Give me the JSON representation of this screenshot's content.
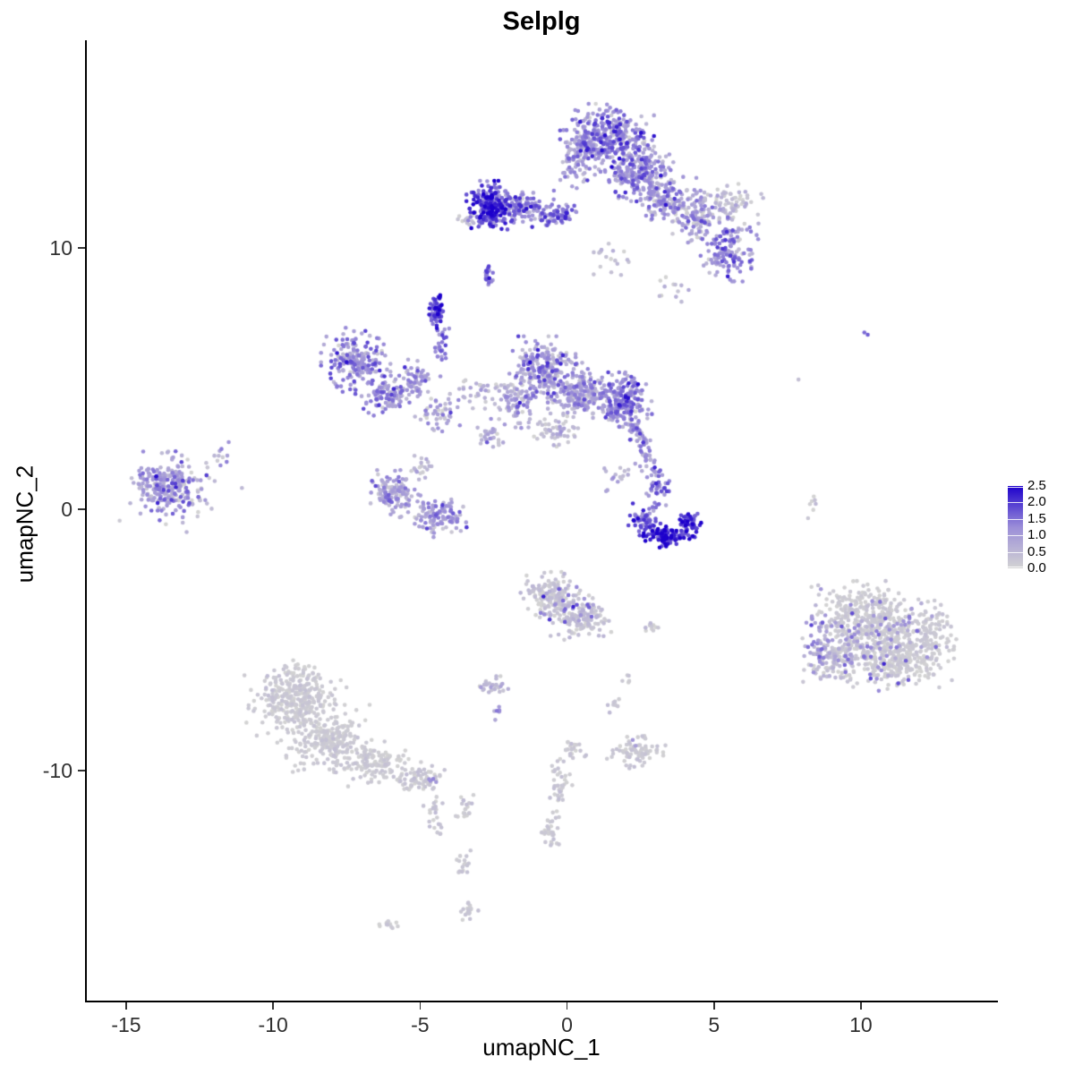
{
  "chart_data": {
    "type": "scatter",
    "title": "Selplg",
    "xlabel": "umapNC_1",
    "ylabel": "umapNC_2",
    "xlim": [
      -16.4,
      14.6
    ],
    "ylim": [
      -18.8,
      17.95
    ],
    "x_ticks": [
      -15,
      -10,
      -5,
      0,
      5,
      10
    ],
    "y_ticks": [
      -10,
      0,
      10
    ],
    "grid": false,
    "point_radius": 2.3,
    "seed": 42,
    "color_scale": {
      "domain": [
        0,
        2.5
      ],
      "stops": [
        [
          0,
          "#D3D3D3"
        ],
        [
          0.5,
          "#9B8ED8"
        ],
        [
          1,
          "#1D00CC"
        ]
      ]
    },
    "legend": {
      "position": "right",
      "labels": [
        "2.5",
        "2.0",
        "1.5",
        "1.0",
        "0.5",
        "0.0"
      ],
      "values": [
        2.5,
        2.0,
        1.5,
        1.0,
        0.5,
        0.0
      ]
    },
    "cluster_fields": [
      "x",
      "y",
      "rx",
      "ry",
      "n",
      "expr_mean",
      "expr_sd"
    ],
    "clusters": [
      [
        1.3,
        14.2,
        1.15,
        0.95,
        360,
        1.15,
        0.55
      ],
      [
        2.4,
        12.9,
        0.95,
        0.75,
        220,
        1.0,
        0.5
      ],
      [
        3.3,
        11.9,
        0.85,
        0.7,
        150,
        0.85,
        0.5
      ],
      [
        4.3,
        11.1,
        0.8,
        0.65,
        120,
        0.8,
        0.5
      ],
      [
        5.4,
        9.9,
        0.75,
        0.85,
        140,
        1.2,
        0.5
      ],
      [
        5.5,
        11.7,
        0.8,
        0.55,
        70,
        0.35,
        0.3
      ],
      [
        0.3,
        13.4,
        0.5,
        0.8,
        80,
        0.9,
        0.5
      ],
      [
        1.2,
        9.7,
        0.9,
        0.6,
        18,
        0.4,
        0.3
      ],
      [
        3.5,
        8.5,
        0.5,
        0.4,
        12,
        0.3,
        0.25
      ],
      [
        -2.65,
        11.6,
        0.6,
        0.7,
        240,
        1.8,
        0.5
      ],
      [
        -1.55,
        11.5,
        0.75,
        0.5,
        110,
        1.1,
        0.5
      ],
      [
        -0.4,
        11.3,
        0.6,
        0.4,
        70,
        1.3,
        0.5
      ],
      [
        -3.5,
        11.1,
        0.3,
        0.25,
        12,
        0.25,
        0.2
      ],
      [
        -4.5,
        7.6,
        0.18,
        0.5,
        65,
        1.9,
        0.4
      ],
      [
        -2.75,
        8.9,
        0.12,
        0.35,
        22,
        1.4,
        0.4
      ],
      [
        -4.35,
        6.2,
        0.2,
        0.8,
        25,
        1.3,
        0.45
      ],
      [
        -7.25,
        5.7,
        0.85,
        0.95,
        190,
        1.15,
        0.5
      ],
      [
        -6.2,
        4.3,
        0.7,
        0.6,
        100,
        1.0,
        0.45
      ],
      [
        -5.2,
        4.9,
        0.5,
        0.6,
        60,
        0.9,
        0.45
      ],
      [
        -4.4,
        3.6,
        0.6,
        0.5,
        45,
        0.8,
        0.45
      ],
      [
        -3.1,
        4.4,
        0.8,
        0.6,
        35,
        0.55,
        0.4
      ],
      [
        -2.6,
        2.9,
        0.5,
        0.6,
        28,
        0.5,
        0.4
      ],
      [
        -0.8,
        5.3,
        0.95,
        0.95,
        260,
        0.9,
        0.55
      ],
      [
        0.4,
        4.4,
        0.8,
        0.7,
        180,
        0.8,
        0.5
      ],
      [
        1.8,
        4.2,
        0.75,
        0.75,
        210,
        1.2,
        0.5
      ],
      [
        -1.8,
        4.1,
        0.5,
        0.8,
        80,
        0.7,
        0.45
      ],
      [
        -0.4,
        3.0,
        0.7,
        0.5,
        55,
        0.35,
        0.3
      ],
      [
        2.35,
        3.1,
        0.3,
        0.5,
        40,
        1.0,
        0.5
      ],
      [
        1.6,
        1.3,
        0.5,
        0.5,
        15,
        0.6,
        0.4
      ],
      [
        -13.7,
        0.9,
        1.0,
        0.95,
        230,
        0.95,
        0.5
      ],
      [
        -13.2,
        0.7,
        1.5,
        1.3,
        40,
        0.35,
        0.3
      ],
      [
        -11.8,
        2.2,
        0.35,
        0.5,
        10,
        0.8,
        0.4
      ],
      [
        -5.9,
        0.6,
        0.75,
        0.65,
        130,
        0.85,
        0.45
      ],
      [
        -4.4,
        -0.3,
        0.7,
        0.55,
        110,
        0.9,
        0.45
      ],
      [
        -5.0,
        1.6,
        0.4,
        0.4,
        18,
        0.5,
        0.35
      ],
      [
        2.6,
        -0.4,
        0.45,
        0.45,
        60,
        1.5,
        0.45
      ],
      [
        3.3,
        -1.0,
        0.55,
        0.35,
        90,
        2.2,
        0.35
      ],
      [
        4.1,
        -0.6,
        0.4,
        0.45,
        60,
        1.9,
        0.45
      ],
      [
        3.0,
        0.9,
        0.3,
        0.7,
        45,
        1.25,
        0.45
      ],
      [
        2.6,
        2.0,
        0.35,
        0.5,
        30,
        1.0,
        0.45
      ],
      [
        -0.6,
        -3.3,
        0.75,
        0.65,
        150,
        0.22,
        0.18
      ],
      [
        0.4,
        -4.2,
        0.75,
        0.65,
        130,
        0.25,
        0.2
      ],
      [
        0.0,
        -3.7,
        0.8,
        0.7,
        25,
        1.3,
        0.4
      ],
      [
        2.75,
        -4.5,
        0.3,
        0.2,
        10,
        0.2,
        0.15
      ],
      [
        -2.6,
        -6.8,
        0.4,
        0.3,
        30,
        0.4,
        0.35
      ],
      [
        -2.4,
        -7.8,
        0.15,
        0.25,
        6,
        0.9,
        0.4
      ],
      [
        -9.3,
        -7.2,
        1.25,
        1.05,
        320,
        0.13,
        0.1
      ],
      [
        -8.2,
        -8.8,
        1.25,
        0.95,
        260,
        0.13,
        0.1
      ],
      [
        -6.6,
        -9.7,
        1.0,
        0.65,
        130,
        0.13,
        0.1
      ],
      [
        -5.2,
        -10.3,
        0.7,
        0.45,
        60,
        0.15,
        0.12
      ],
      [
        -4.6,
        -11.6,
        0.25,
        0.85,
        28,
        0.18,
        0.14
      ],
      [
        -4.7,
        -10.3,
        0.15,
        0.2,
        4,
        1.2,
        0.3
      ],
      [
        10.2,
        -4.2,
        1.4,
        1.05,
        360,
        0.12,
        0.1
      ],
      [
        11.3,
        -5.7,
        1.3,
        0.95,
        300,
        0.12,
        0.1
      ],
      [
        9.2,
        -5.6,
        0.9,
        0.9,
        150,
        0.25,
        0.2
      ],
      [
        10.5,
        -5.0,
        1.7,
        1.4,
        90,
        1.1,
        0.4
      ],
      [
        8.6,
        -5.2,
        0.45,
        1.1,
        55,
        0.9,
        0.4
      ],
      [
        12.4,
        -4.6,
        0.6,
        0.8,
        60,
        0.12,
        0.1
      ],
      [
        10.0,
        6.8,
        0.15,
        0.12,
        2,
        1.6,
        0.2
      ],
      [
        7.8,
        4.9,
        0.1,
        0.1,
        1,
        0.4,
        0.1
      ],
      [
        8.3,
        0.2,
        0.12,
        0.55,
        7,
        0.3,
        0.25
      ],
      [
        2.3,
        -9.3,
        0.75,
        0.45,
        80,
        0.15,
        0.12
      ],
      [
        2.4,
        -9.1,
        0.3,
        0.2,
        2,
        1.1,
        0.2
      ],
      [
        0.1,
        -9.2,
        0.35,
        0.35,
        22,
        0.15,
        0.12
      ],
      [
        -0.3,
        -10.6,
        0.3,
        0.85,
        40,
        0.15,
        0.12
      ],
      [
        -0.6,
        -12.4,
        0.3,
        0.6,
        28,
        0.15,
        0.12
      ],
      [
        -3.5,
        -11.4,
        0.25,
        0.55,
        20,
        0.15,
        0.12
      ],
      [
        -3.6,
        -13.6,
        0.2,
        0.5,
        16,
        0.15,
        0.12
      ],
      [
        -3.4,
        -15.3,
        0.3,
        0.4,
        22,
        0.15,
        0.12
      ],
      [
        -6.2,
        -15.9,
        0.4,
        0.18,
        12,
        0.15,
        0.12
      ],
      [
        1.6,
        -7.5,
        0.25,
        0.25,
        8,
        0.15,
        0.12
      ],
      [
        2.1,
        -6.4,
        0.2,
        0.2,
        5,
        0.15,
        0.12
      ]
    ]
  }
}
